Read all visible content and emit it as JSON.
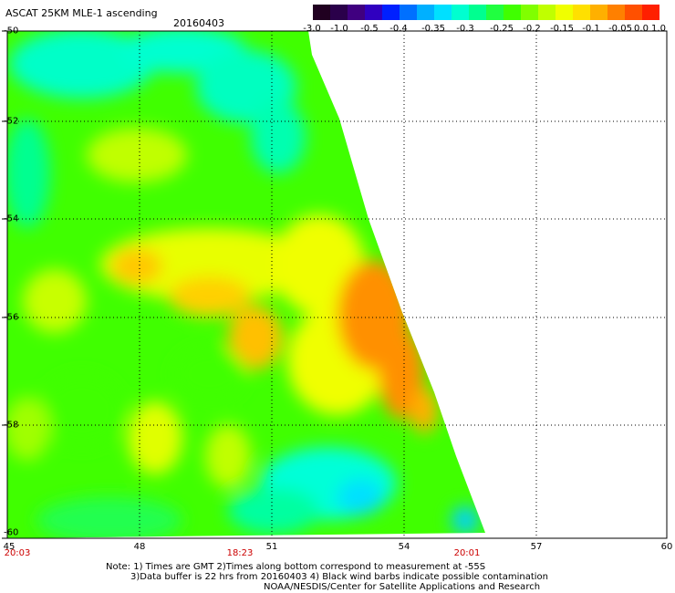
{
  "header": {
    "title": "ASCAT 25KM MLE-1 ascending",
    "date": "20160403"
  },
  "colorbar": {
    "tick_labels": [
      "-3.0",
      "-1.0",
      "-0.5",
      "-0.4",
      "-0.35",
      "-0.3",
      "-0.25",
      "-0.2",
      "-0.15",
      "-0.1",
      "-0.05",
      "0.0",
      "1.0"
    ],
    "colors": [
      "#200020",
      "#2a004a",
      "#400080",
      "#3000c0",
      "#0020ff",
      "#0070ff",
      "#00b0ff",
      "#00e0ff",
      "#00ffd0",
      "#00ff90",
      "#20ff40",
      "#40ff00",
      "#80ff00",
      "#c0ff00",
      "#f0ff00",
      "#ffe000",
      "#ffb000",
      "#ff8000",
      "#ff5000",
      "#ff2000"
    ]
  },
  "map": {
    "lat_labels": [
      "-50",
      "-52",
      "-54",
      "-56",
      "-58",
      "-60"
    ],
    "lon_labels": [
      "45",
      "48",
      "51",
      "54",
      "57",
      "60"
    ],
    "time_labels": [
      "20:03",
      "18:23",
      "20:01"
    ]
  },
  "footer": {
    "note_line1": "Note: 1) Times are GMT 2)Times along bottom correspond to measurement at -55S",
    "note_line2": "3)Data buffer is 22 hrs from 20160403 4) Black wind barbs indicate possible contamination",
    "credit": "NOAA/NESDIS/Center for Satellite Applications and Research"
  }
}
